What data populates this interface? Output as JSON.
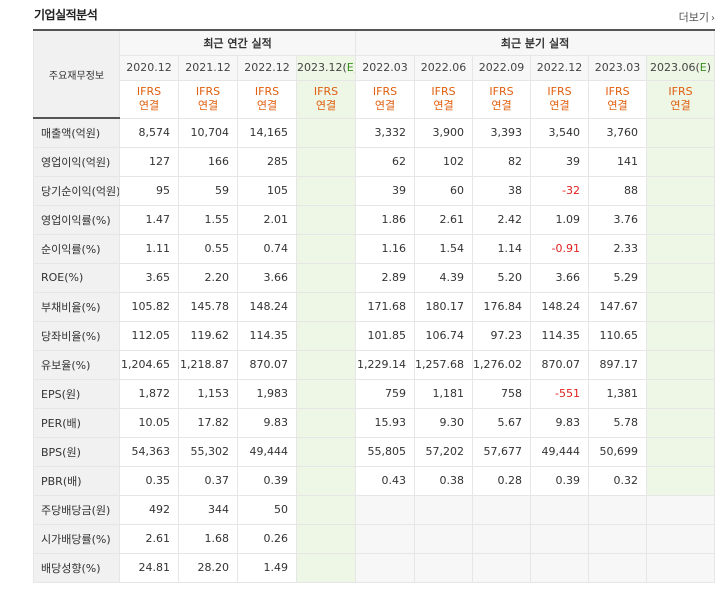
{
  "header": {
    "title": "기업실적분석",
    "more_label": "더보기",
    "more_icon": "chevron-right-icon"
  },
  "table": {
    "corner_label": "주요재무정보",
    "annual_group": "최근 연간 실적",
    "quarter_group": "최근 분기 실적",
    "annual_periods": [
      "2020.12",
      "2021.12",
      "2022.12",
      "2023.12(E)"
    ],
    "quarter_periods": [
      "2022.03",
      "2022.06",
      "2022.09",
      "2022.12",
      "2023.03",
      "2023.06(E)"
    ],
    "ifrs_line1": "IFRS",
    "ifrs_line2": "연결",
    "rows": [
      {
        "label": "매출액(억원)",
        "annual": [
          "8,574",
          "10,704",
          "14,165",
          ""
        ],
        "quarter": [
          "3,332",
          "3,900",
          "3,393",
          "3,540",
          "3,760",
          ""
        ]
      },
      {
        "label": "영업이익(억원)",
        "annual": [
          "127",
          "166",
          "285",
          ""
        ],
        "quarter": [
          "62",
          "102",
          "82",
          "39",
          "141",
          ""
        ]
      },
      {
        "label": "당기순이익(억원)",
        "annual": [
          "95",
          "59",
          "105",
          ""
        ],
        "quarter": [
          "39",
          "60",
          "38",
          "-32",
          "88",
          ""
        ]
      },
      {
        "label": "영업이익률(%)",
        "annual": [
          "1.47",
          "1.55",
          "2.01",
          ""
        ],
        "quarter": [
          "1.86",
          "2.61",
          "2.42",
          "1.09",
          "3.76",
          ""
        ]
      },
      {
        "label": "순이익률(%)",
        "annual": [
          "1.11",
          "0.55",
          "0.74",
          ""
        ],
        "quarter": [
          "1.16",
          "1.54",
          "1.14",
          "-0.91",
          "2.33",
          ""
        ]
      },
      {
        "label": "ROE(%)",
        "annual": [
          "3.65",
          "2.20",
          "3.66",
          ""
        ],
        "quarter": [
          "2.89",
          "4.39",
          "5.20",
          "3.66",
          "5.29",
          ""
        ]
      },
      {
        "label": "부채비율(%)",
        "annual": [
          "105.82",
          "145.78",
          "148.24",
          ""
        ],
        "quarter": [
          "171.68",
          "180.17",
          "176.84",
          "148.24",
          "147.67",
          ""
        ]
      },
      {
        "label": "당좌비율(%)",
        "annual": [
          "112.05",
          "119.62",
          "114.35",
          ""
        ],
        "quarter": [
          "101.85",
          "106.74",
          "97.23",
          "114.35",
          "110.65",
          ""
        ]
      },
      {
        "label": "유보율(%)",
        "annual": [
          "1,204.65",
          "1,218.87",
          "870.07",
          ""
        ],
        "quarter": [
          "1,229.14",
          "1,257.68",
          "1,276.02",
          "870.07",
          "897.17",
          ""
        ]
      },
      {
        "label": "EPS(원)",
        "annual": [
          "1,872",
          "1,153",
          "1,983",
          ""
        ],
        "quarter": [
          "759",
          "1,181",
          "758",
          "-551",
          "1,381",
          ""
        ]
      },
      {
        "label": "PER(배)",
        "annual": [
          "10.05",
          "17.82",
          "9.83",
          ""
        ],
        "quarter": [
          "15.93",
          "9.30",
          "5.67",
          "9.83",
          "5.78",
          ""
        ]
      },
      {
        "label": "BPS(원)",
        "annual": [
          "54,363",
          "55,302",
          "49,444",
          ""
        ],
        "quarter": [
          "55,805",
          "57,202",
          "57,677",
          "49,444",
          "50,699",
          ""
        ]
      },
      {
        "label": "PBR(배)",
        "annual": [
          "0.35",
          "0.37",
          "0.39",
          ""
        ],
        "quarter": [
          "0.43",
          "0.38",
          "0.28",
          "0.39",
          "0.32",
          ""
        ]
      },
      {
        "label": "주당배당금(원)",
        "annual": [
          "492",
          "344",
          "50",
          ""
        ],
        "quarter": null
      },
      {
        "label": "시가배당률(%)",
        "annual": [
          "2.61",
          "1.68",
          "0.26",
          ""
        ],
        "quarter": null
      },
      {
        "label": "배당성향(%)",
        "annual": [
          "24.81",
          "28.20",
          "1.49",
          ""
        ],
        "quarter": null
      }
    ]
  },
  "colors": {
    "ifrs_text": "#e05e0d",
    "estimate_bg": "#eef6e6",
    "estimate_marker": "#3a8d1f",
    "negative": "#e02020"
  }
}
